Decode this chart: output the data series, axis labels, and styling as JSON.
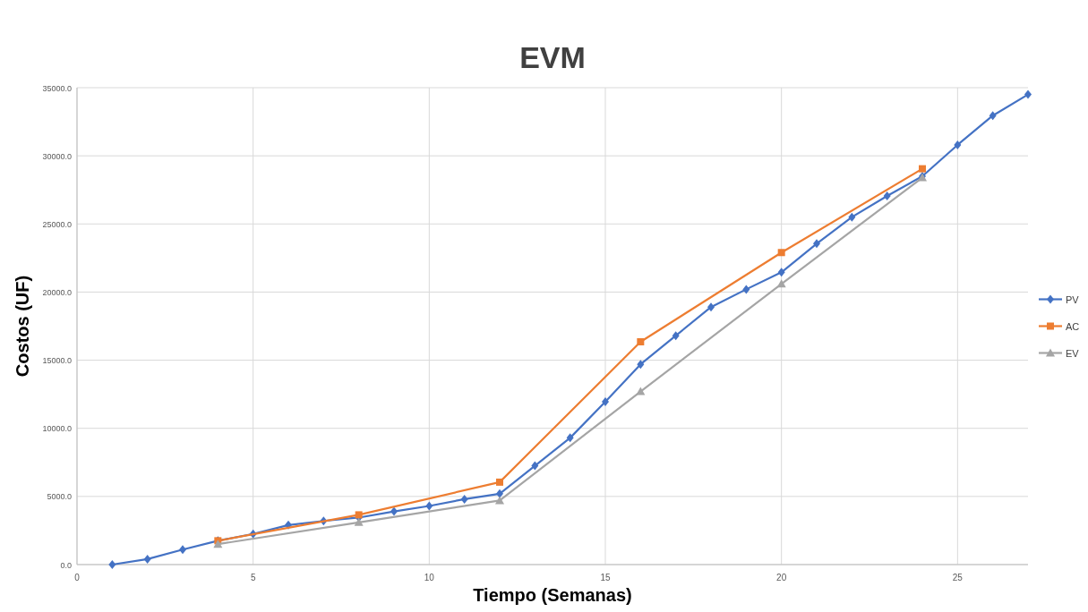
{
  "chart_data": {
    "type": "line",
    "title": "EVM",
    "xlabel": "Tiempo (Semanas)",
    "ylabel": "Costos (UF)",
    "xlim": [
      0,
      27
    ],
    "xticks": [
      0,
      5,
      10,
      15,
      20,
      25
    ],
    "ylim": [
      0,
      35000
    ],
    "yticks": [
      {
        "value": 0,
        "label": "0.0"
      },
      {
        "value": 5000,
        "label": "5000.0"
      },
      {
        "value": 10000,
        "label": "10000.0"
      },
      {
        "value": 15000,
        "label": "15000.0"
      },
      {
        "value": 20000,
        "label": "20000.0"
      },
      {
        "value": 25000,
        "label": "25000.0"
      },
      {
        "value": 30000,
        "label": "30000.0"
      },
      {
        "value": 35000,
        "label": "35000.0"
      }
    ],
    "grid": true,
    "legend": "right",
    "line_style": "solid",
    "series": [
      {
        "name": "PV",
        "color": "#4472c4",
        "marker": "diamond",
        "x": [
          1,
          2,
          3,
          4,
          5,
          6,
          7,
          8,
          9,
          10,
          11,
          12,
          13,
          14,
          15,
          16,
          17,
          18,
          19,
          20,
          21,
          22,
          23,
          24,
          25,
          26,
          27
        ],
        "values": [
          0,
          400,
          1100,
          1750,
          2250,
          2900,
          3200,
          3450,
          3900,
          4300,
          4800,
          5200,
          7250,
          9300,
          11950,
          14700,
          16800,
          18900,
          20200,
          21450,
          23550,
          25500,
          27050,
          28500,
          30800,
          32950,
          34500
        ]
      },
      {
        "name": "AC",
        "color": "#ed7d31",
        "marker": "square",
        "x": [
          4,
          8,
          12,
          16,
          20,
          24
        ],
        "values": [
          1750,
          3650,
          6050,
          16350,
          22900,
          29050
        ]
      },
      {
        "name": "EV",
        "color": "#a5a5a5",
        "marker": "triangle",
        "x": [
          4,
          8,
          12,
          16,
          20,
          24
        ],
        "values": [
          1500,
          3100,
          4700,
          12700,
          20600,
          28400
        ]
      }
    ]
  }
}
